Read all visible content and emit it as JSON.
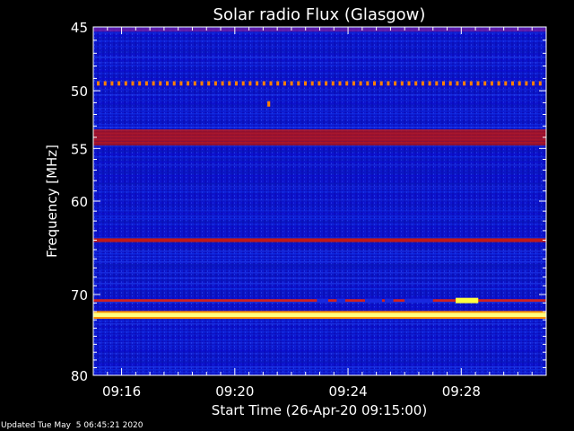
{
  "chart_data": {
    "type": "heatmap",
    "title": "Solar radio Flux (Glasgow)",
    "xlabel": "Start Time (26-Apr-20 09:15:00)",
    "ylabel": "Frequency [MHz]",
    "x_unit": "minutes after 09:15:00",
    "xlim": [
      0,
      16
    ],
    "ylim": [
      45,
      80
    ],
    "x_ticks": [
      {
        "value": 1,
        "label": "09:16"
      },
      {
        "value": 5,
        "label": "09:20"
      },
      {
        "value": 9,
        "label": "09:24"
      },
      {
        "value": 13,
        "label": "09:28"
      }
    ],
    "y_ticks": [
      {
        "value": 45,
        "label": "45"
      },
      {
        "value": 50,
        "label": "50"
      },
      {
        "value": 55,
        "label": "55"
      },
      {
        "value": 60,
        "label": "60"
      },
      {
        "value": 70,
        "label": "70"
      },
      {
        "value": 80,
        "label": "80"
      }
    ],
    "background_colors": [
      "#0b0bd0",
      "#1030e8",
      "#0818b8",
      "#2040f0"
    ],
    "emission_bands": [
      {
        "freq": 45.2,
        "width": 0.3,
        "intensity": "medium",
        "color": "#8020a0"
      },
      {
        "freq": 49.4,
        "width": 0.35,
        "intensity": "bursty",
        "color": "#ff8000"
      },
      {
        "freq": 54.0,
        "width": 1.4,
        "intensity": "high",
        "color": "#c01818"
      },
      {
        "freq": 64.0,
        "width": 0.4,
        "intensity": "high",
        "color": "#c01818"
      },
      {
        "freq": 70.7,
        "width": 0.3,
        "intensity": "high",
        "color": "#d02020"
      },
      {
        "freq": 72.4,
        "width": 0.5,
        "intensity": "saturated",
        "color": "#ffff80"
      }
    ],
    "bursts": [
      {
        "time": 13.2,
        "freq": 70.7,
        "duration": 0.8,
        "color": "#ffff40"
      },
      {
        "time": 6.2,
        "freq": 51.1,
        "duration": 0.1,
        "color": "#ff8000"
      }
    ]
  },
  "footer": "Updated Tue May  5 06:45:21 2020"
}
